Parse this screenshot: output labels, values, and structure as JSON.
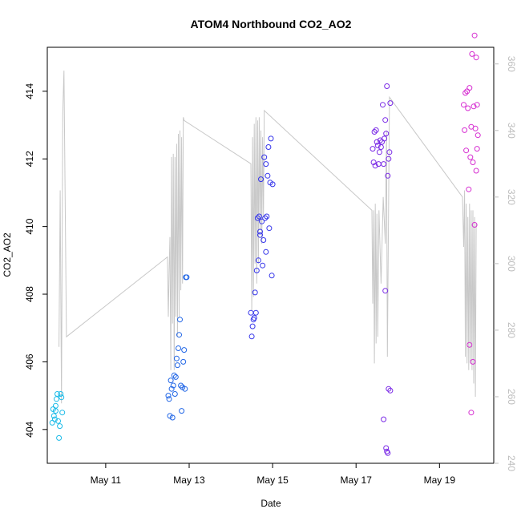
{
  "chart_data": {
    "type": "scatter",
    "title": "ATOM4 Northbound CO2_AO2",
    "xlabel": "Date",
    "ylabel": "CO2_AO2",
    "x_ticks": [
      "May 11",
      "May 13",
      "May 15",
      "May 17",
      "May 19"
    ],
    "x_tick_days": [
      11,
      13,
      15,
      17,
      19
    ],
    "xlim": [
      9.6,
      20.3
    ],
    "ylim": [
      403.0,
      415.3
    ],
    "y_ticks": [
      404,
      406,
      408,
      410,
      412,
      414
    ],
    "y2lim": [
      240,
      365
    ],
    "y2_ticks": [
      240,
      260,
      280,
      300,
      320,
      340,
      360
    ],
    "line_color": "#c8c8c8",
    "tick_color_right": "#bdbdbd",
    "grid": false,
    "legend": "none",
    "secondary_line": {
      "axis": "right",
      "points": [
        [
          9.88,
          275
        ],
        [
          9.91,
          322
        ],
        [
          9.94,
          258
        ],
        [
          9.97,
          345
        ],
        [
          10.0,
          358
        ],
        [
          10.06,
          278
        ],
        [
          12.48,
          302
        ],
        [
          12.5,
          284
        ],
        [
          12.52,
          298
        ],
        [
          12.54,
          308
        ],
        [
          12.56,
          268
        ],
        [
          12.58,
          332
        ],
        [
          12.6,
          282
        ],
        [
          12.62,
          333
        ],
        [
          12.64,
          268
        ],
        [
          12.66,
          332
        ],
        [
          12.68,
          284
        ],
        [
          12.7,
          336
        ],
        [
          12.72,
          278
        ],
        [
          12.74,
          339
        ],
        [
          12.76,
          284
        ],
        [
          12.78,
          340
        ],
        [
          12.8,
          292
        ],
        [
          12.82,
          338
        ],
        [
          12.84,
          294
        ],
        [
          12.86,
          344
        ],
        [
          12.88,
          343
        ],
        [
          14.48,
          330
        ],
        [
          14.5,
          286
        ],
        [
          14.52,
          338
        ],
        [
          14.54,
          290
        ],
        [
          14.56,
          342
        ],
        [
          14.58,
          300
        ],
        [
          14.6,
          344
        ],
        [
          14.62,
          294
        ],
        [
          14.64,
          343
        ],
        [
          14.66,
          300
        ],
        [
          14.68,
          344
        ],
        [
          14.7,
          310
        ],
        [
          14.72,
          340
        ],
        [
          14.74,
          306
        ],
        [
          14.76,
          338
        ],
        [
          14.78,
          314
        ],
        [
          14.8,
          346
        ],
        [
          17.38,
          316
        ],
        [
          17.4,
          288
        ],
        [
          17.42,
          316
        ],
        [
          17.44,
          270
        ],
        [
          17.46,
          318
        ],
        [
          17.48,
          276
        ],
        [
          17.5,
          315
        ],
        [
          17.52,
          278
        ],
        [
          17.55,
          316
        ],
        [
          17.6,
          294
        ],
        [
          17.65,
          320
        ],
        [
          17.7,
          306
        ],
        [
          17.73,
          340
        ],
        [
          17.75,
          272
        ],
        [
          17.8,
          350
        ],
        [
          19.55,
          320
        ],
        [
          19.58,
          305
        ],
        [
          19.6,
          322
        ],
        [
          19.62,
          272
        ],
        [
          19.64,
          318
        ],
        [
          19.66,
          270
        ],
        [
          19.68,
          314
        ],
        [
          19.7,
          268
        ],
        [
          19.72,
          318
        ],
        [
          19.74,
          270
        ],
        [
          19.76,
          316
        ],
        [
          19.78,
          268
        ],
        [
          19.8,
          316
        ],
        [
          19.82,
          264
        ],
        [
          19.84,
          314
        ],
        [
          19.86,
          260
        ],
        [
          19.88,
          312
        ]
      ]
    },
    "series": [
      {
        "color": "#1bbbe8",
        "points": [
          [
            9.72,
            404.2
          ],
          [
            9.74,
            404.6
          ],
          [
            9.76,
            404.4
          ],
          [
            9.78,
            404.3
          ],
          [
            9.8,
            404.55
          ],
          [
            9.8,
            404.7
          ],
          [
            9.82,
            404.9
          ],
          [
            9.84,
            405.05
          ],
          [
            9.86,
            404.25
          ],
          [
            9.88,
            403.75
          ],
          [
            9.9,
            404.1
          ],
          [
            9.92,
            405.05
          ],
          [
            9.94,
            404.95
          ],
          [
            9.96,
            404.5
          ]
        ]
      },
      {
        "color": "#2166e6",
        "points": [
          [
            12.5,
            405.0
          ],
          [
            12.52,
            404.9
          ],
          [
            12.54,
            404.4
          ],
          [
            12.56,
            405.45
          ],
          [
            12.58,
            405.2
          ],
          [
            12.6,
            404.35
          ],
          [
            12.62,
            405.3
          ],
          [
            12.64,
            405.6
          ],
          [
            12.66,
            405.05
          ],
          [
            12.68,
            405.55
          ],
          [
            12.7,
            406.1
          ],
          [
            12.72,
            405.9
          ],
          [
            12.74,
            406.4
          ],
          [
            12.76,
            406.8
          ],
          [
            12.78,
            407.25
          ],
          [
            12.8,
            405.3
          ],
          [
            12.82,
            404.55
          ],
          [
            12.84,
            405.25
          ],
          [
            12.86,
            406.0
          ],
          [
            12.88,
            406.35
          ],
          [
            12.9,
            405.2
          ],
          [
            12.92,
            408.5
          ],
          [
            12.94,
            408.5
          ]
        ]
      },
      {
        "color": "#3535ea",
        "points": [
          [
            14.48,
            407.45
          ],
          [
            14.5,
            406.75
          ],
          [
            14.52,
            407.05
          ],
          [
            14.54,
            407.25
          ],
          [
            14.56,
            407.3
          ],
          [
            14.58,
            408.05
          ],
          [
            14.6,
            407.45
          ],
          [
            14.62,
            408.7
          ],
          [
            14.64,
            410.25
          ],
          [
            14.66,
            409.0
          ],
          [
            14.68,
            410.3
          ],
          [
            14.7,
            409.75
          ],
          [
            14.72,
            411.4
          ],
          [
            14.74,
            410.15
          ],
          [
            14.76,
            408.85
          ],
          [
            14.78,
            409.6
          ],
          [
            14.8,
            412.05
          ],
          [
            14.82,
            410.25
          ],
          [
            14.84,
            411.85
          ],
          [
            14.86,
            410.3
          ],
          [
            14.88,
            411.5
          ],
          [
            14.9,
            412.35
          ],
          [
            14.92,
            409.95
          ],
          [
            14.94,
            411.3
          ],
          [
            14.96,
            412.6
          ],
          [
            14.98,
            408.55
          ],
          [
            15.0,
            411.25
          ],
          [
            14.84,
            409.25
          ],
          [
            14.7,
            409.85
          ]
        ]
      },
      {
        "color": "#7a2ae6",
        "points": [
          [
            17.4,
            412.3
          ],
          [
            17.42,
            411.9
          ],
          [
            17.44,
            412.8
          ],
          [
            17.46,
            411.8
          ],
          [
            17.48,
            412.85
          ],
          [
            17.5,
            412.5
          ],
          [
            17.52,
            412.4
          ],
          [
            17.54,
            411.85
          ],
          [
            17.56,
            412.2
          ],
          [
            17.58,
            412.55
          ],
          [
            17.6,
            412.35
          ],
          [
            17.62,
            412.5
          ],
          [
            17.64,
            413.6
          ],
          [
            17.66,
            411.85
          ],
          [
            17.68,
            412.6
          ],
          [
            17.7,
            413.15
          ],
          [
            17.72,
            412.75
          ],
          [
            17.74,
            414.15
          ],
          [
            17.76,
            411.5
          ],
          [
            17.78,
            412.0
          ],
          [
            17.8,
            412.2
          ],
          [
            17.82,
            413.65
          ],
          [
            17.66,
            404.3
          ],
          [
            17.7,
            408.1
          ],
          [
            17.72,
            403.45
          ],
          [
            17.74,
            403.35
          ],
          [
            17.76,
            403.3
          ],
          [
            17.78,
            405.2
          ],
          [
            17.82,
            405.15
          ]
        ]
      },
      {
        "color": "#d62ed1",
        "points": [
          [
            19.58,
            413.6
          ],
          [
            19.6,
            412.85
          ],
          [
            19.62,
            413.95
          ],
          [
            19.64,
            412.25
          ],
          [
            19.66,
            414.0
          ],
          [
            19.68,
            413.5
          ],
          [
            19.7,
            411.1
          ],
          [
            19.72,
            414.1
          ],
          [
            19.74,
            412.05
          ],
          [
            19.76,
            412.95
          ],
          [
            19.78,
            415.1
          ],
          [
            19.8,
            411.9
          ],
          [
            19.82,
            413.55
          ],
          [
            19.84,
            415.65
          ],
          [
            19.86,
            412.9
          ],
          [
            19.88,
            415.0
          ],
          [
            19.9,
            412.3
          ],
          [
            19.72,
            406.5
          ],
          [
            19.76,
            404.5
          ],
          [
            19.8,
            406.0
          ],
          [
            19.84,
            410.05
          ],
          [
            19.88,
            411.65
          ],
          [
            19.92,
            412.7
          ],
          [
            19.9,
            413.6
          ]
        ]
      }
    ]
  }
}
